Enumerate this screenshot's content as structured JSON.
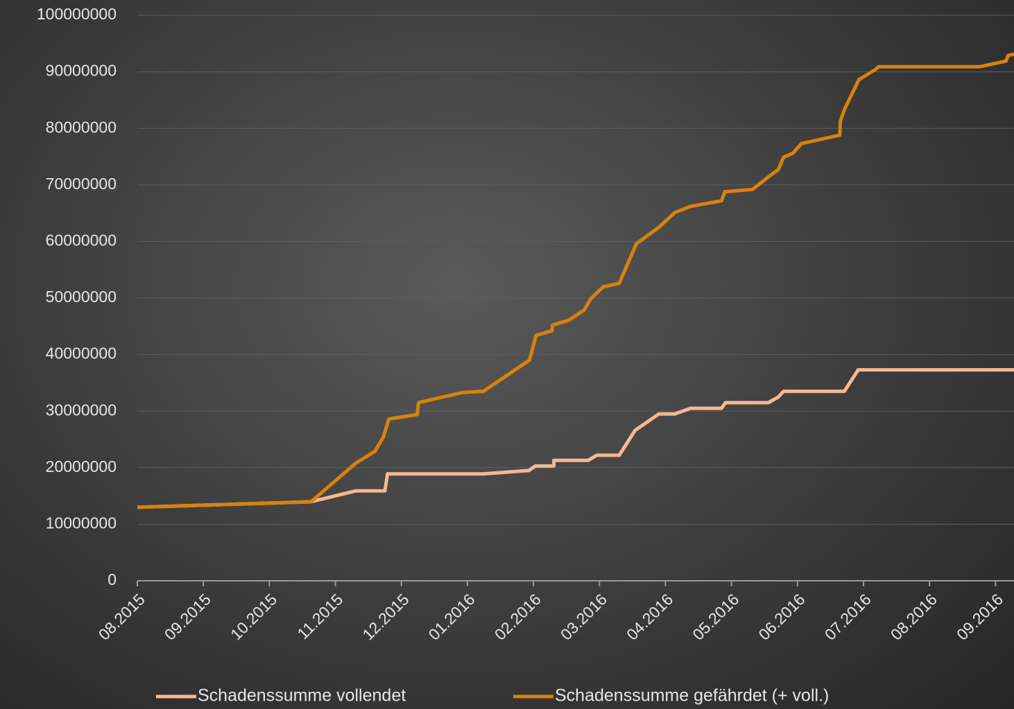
{
  "chart_data": {
    "type": "line",
    "ylim": [
      0,
      100000000
    ],
    "yticks": [
      0,
      10000000,
      20000000,
      30000000,
      40000000,
      50000000,
      60000000,
      70000000,
      80000000,
      90000000,
      100000000
    ],
    "xlim": [
      0,
      13.28
    ],
    "xticks": [
      {
        "value": 0,
        "label": "08.2015"
      },
      {
        "value": 1,
        "label": "09.2015"
      },
      {
        "value": 2,
        "label": "10.2015"
      },
      {
        "value": 3,
        "label": "11.2015"
      },
      {
        "value": 4,
        "label": "12.2015"
      },
      {
        "value": 5,
        "label": "01.2016"
      },
      {
        "value": 6,
        "label": "02.2016"
      },
      {
        "value": 7,
        "label": "03.2016"
      },
      {
        "value": 8,
        "label": "04.2016"
      },
      {
        "value": 9,
        "label": "05.2016"
      },
      {
        "value": 10,
        "label": "06.2016"
      },
      {
        "value": 11,
        "label": "07.2016"
      },
      {
        "value": 12,
        "label": "08.2016"
      },
      {
        "value": 13,
        "label": "09.2016"
      }
    ],
    "grid": true,
    "legend": "bottom",
    "series": [
      {
        "name": "Schadenssumme vollendet",
        "color": "#f7b88f",
        "x": [
          0,
          2.63,
          3.31,
          3.75,
          3.79,
          5.24,
          5.93,
          6.03,
          6.31,
          6.31,
          6.83,
          6.96,
          7.3,
          7.54,
          7.9,
          8.14,
          8.38,
          8.85,
          8.91,
          9.56,
          9.71,
          9.79,
          10.71,
          10.92,
          13.28
        ],
        "values": [
          13000000,
          13970000,
          15900000,
          15900000,
          18900000,
          18900000,
          19500000,
          20300000,
          20300000,
          21300000,
          21300000,
          22200000,
          22200000,
          26600000,
          29500000,
          29500000,
          30500000,
          30500000,
          31500000,
          31500000,
          32500000,
          33500000,
          33500000,
          37300000,
          37300000
        ]
      },
      {
        "name": "Schadenssumme gefährdet (+ voll.)",
        "color": "#d8820c",
        "x": [
          0,
          2.63,
          3.31,
          3.6,
          3.73,
          3.81,
          4.24,
          4.26,
          4.93,
          5.24,
          5.94,
          6.04,
          6.28,
          6.29,
          6.54,
          6.77,
          6.87,
          7.06,
          7.3,
          7.56,
          7.9,
          8.14,
          8.38,
          8.85,
          8.9,
          9.32,
          9.59,
          9.71,
          9.79,
          9.93,
          10.06,
          10.64,
          10.65,
          10.71,
          10.93,
          11.18,
          11.23,
          12.76,
          13.16,
          13.19,
          13.28
        ],
        "values": [
          13000000,
          13970000,
          20800000,
          22900000,
          25500000,
          28600000,
          29400000,
          31500000,
          33300000,
          33500000,
          39000000,
          43400000,
          44200000,
          45200000,
          46100000,
          47900000,
          49900000,
          52000000,
          52600000,
          59600000,
          62500000,
          65100000,
          66200000,
          67200000,
          68800000,
          69200000,
          71700000,
          72700000,
          74900000,
          75600000,
          77300000,
          78800000,
          81300000,
          83300000,
          88600000,
          90400000,
          90900000,
          90900000,
          91900000,
          92900000,
          93100000
        ]
      }
    ]
  }
}
